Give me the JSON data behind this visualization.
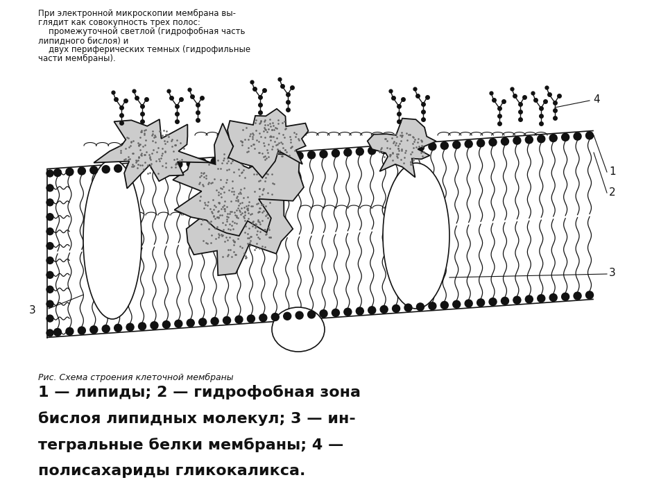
{
  "bg_color": "#ffffff",
  "top_text_line1": "При электронной микроскопии мембрана вы-",
  "top_text_line2": "глядит как совокупность трех полос:",
  "top_text_line3": "    промежуточной светлой (гидрофобная часть",
  "top_text_line4": "липидного бислоя) и",
  "top_text_line5": "    двух периферических темных (гидрофильные",
  "top_text_line6": "части мембраны).",
  "caption_title": "Рис. Схема строения клеточной мембраны",
  "caption_body": "1 — липиды; 2 — гидрофобная зона бислоя липидных молекул; 3 — ин-\nтегральные белки мембраны; 4 — полисахариды гликокаликса.",
  "label_1": "1",
  "label_2": "2",
  "label_3": "3",
  "label_4": "4",
  "outline_color": "#111111",
  "stipple_color": "#555555",
  "font_size_top": 8.5,
  "font_size_caption_title": 9,
  "font_size_caption_body": 16,
  "font_size_label": 11
}
